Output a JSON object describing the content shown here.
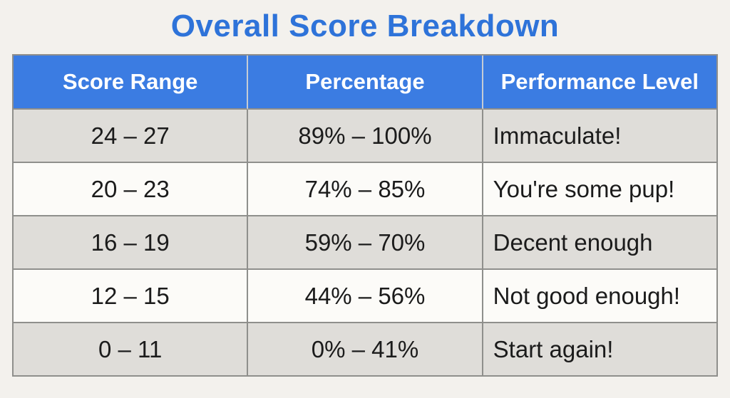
{
  "title": "Overall Score Breakdown",
  "chart_data": {
    "type": "table",
    "title": "Overall Score Breakdown",
    "columns": [
      "Score Range",
      "Percentage",
      "Performance Level"
    ],
    "rows": [
      [
        "24 – 27",
        "89% – 100%",
        "Immaculate!"
      ],
      [
        "20 – 23",
        "74% – 85%",
        "You're some pup!"
      ],
      [
        "16 – 19",
        "59% – 70%",
        "Decent enough"
      ],
      [
        "12 – 15",
        "44% – 56%",
        "Not good enough!"
      ],
      [
        "0 – 11",
        "0% – 41%",
        "Start again!"
      ]
    ],
    "layout_hints": {
      "header_style": "blue band, white bold text",
      "row_striping": "shaded, plain, shaded, plain, shaded",
      "column_alignment": [
        "center",
        "center",
        "left"
      ]
    }
  },
  "colors": {
    "page_bg": "#f3f1ed",
    "title_text": "#2e73d9",
    "header_bg": "#3b7ce2",
    "header_text": "#ffffff",
    "row_shaded_bg": "#dfddd9",
    "row_plain_bg": "#fcfbf8",
    "border": "#8f8f8c",
    "header_separator": "#c5ccd5",
    "cell_text": "#1b1b1b"
  }
}
